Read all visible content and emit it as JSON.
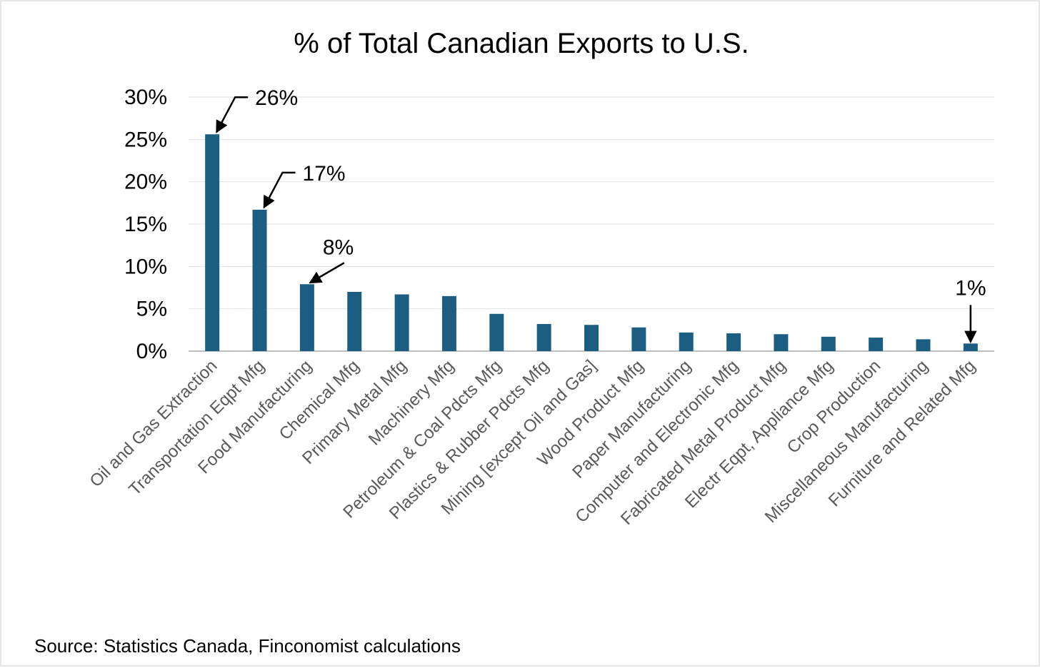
{
  "chart_data": {
    "type": "bar",
    "title": "% of Total Canadian Exports to U.S.",
    "xlabel": "",
    "ylabel": "",
    "ylim": [
      0,
      30
    ],
    "yticks": [
      0,
      5,
      10,
      15,
      20,
      25,
      30
    ],
    "ytick_labels": [
      "0%",
      "5%",
      "10%",
      "15%",
      "20%",
      "25%",
      "30%"
    ],
    "grid": true,
    "bar_color": "#1b5e82",
    "categories": [
      "Oil and Gas Extraction",
      "Transportation Eqpt Mfg",
      "Food Manufacturing",
      "Chemical Mfg",
      "Primary Metal Mfg",
      "Machinery Mfg",
      "Petroleum & Coal Pdcts Mfg",
      "Plastics & Rubber Pdcts Mfg",
      "Mining [except Oil and Gas]",
      "Wood Product Mfg",
      "Paper Manufacturing",
      "Computer and Electronic Mfg",
      "Fabricated Metal Product Mfg",
      "Electr Eqpt, Appliance Mfg",
      "Crop Production",
      "Miscellaneous Manufacturing",
      "Furniture and Related Mfg"
    ],
    "values": [
      25.6,
      16.7,
      7.9,
      7.0,
      6.7,
      6.5,
      4.4,
      3.2,
      3.1,
      2.8,
      2.2,
      2.1,
      2.0,
      1.7,
      1.6,
      1.4,
      0.9
    ],
    "annotations": [
      {
        "category_index": 0,
        "text": "26%",
        "style": "from-top-right"
      },
      {
        "category_index": 1,
        "text": "17%",
        "style": "from-top-right"
      },
      {
        "category_index": 2,
        "text": "8%",
        "style": "diagonal"
      },
      {
        "category_index": 16,
        "text": "1%",
        "style": "vertical"
      }
    ]
  },
  "source": "Source: Statistics Canada, Finconomist calculations"
}
